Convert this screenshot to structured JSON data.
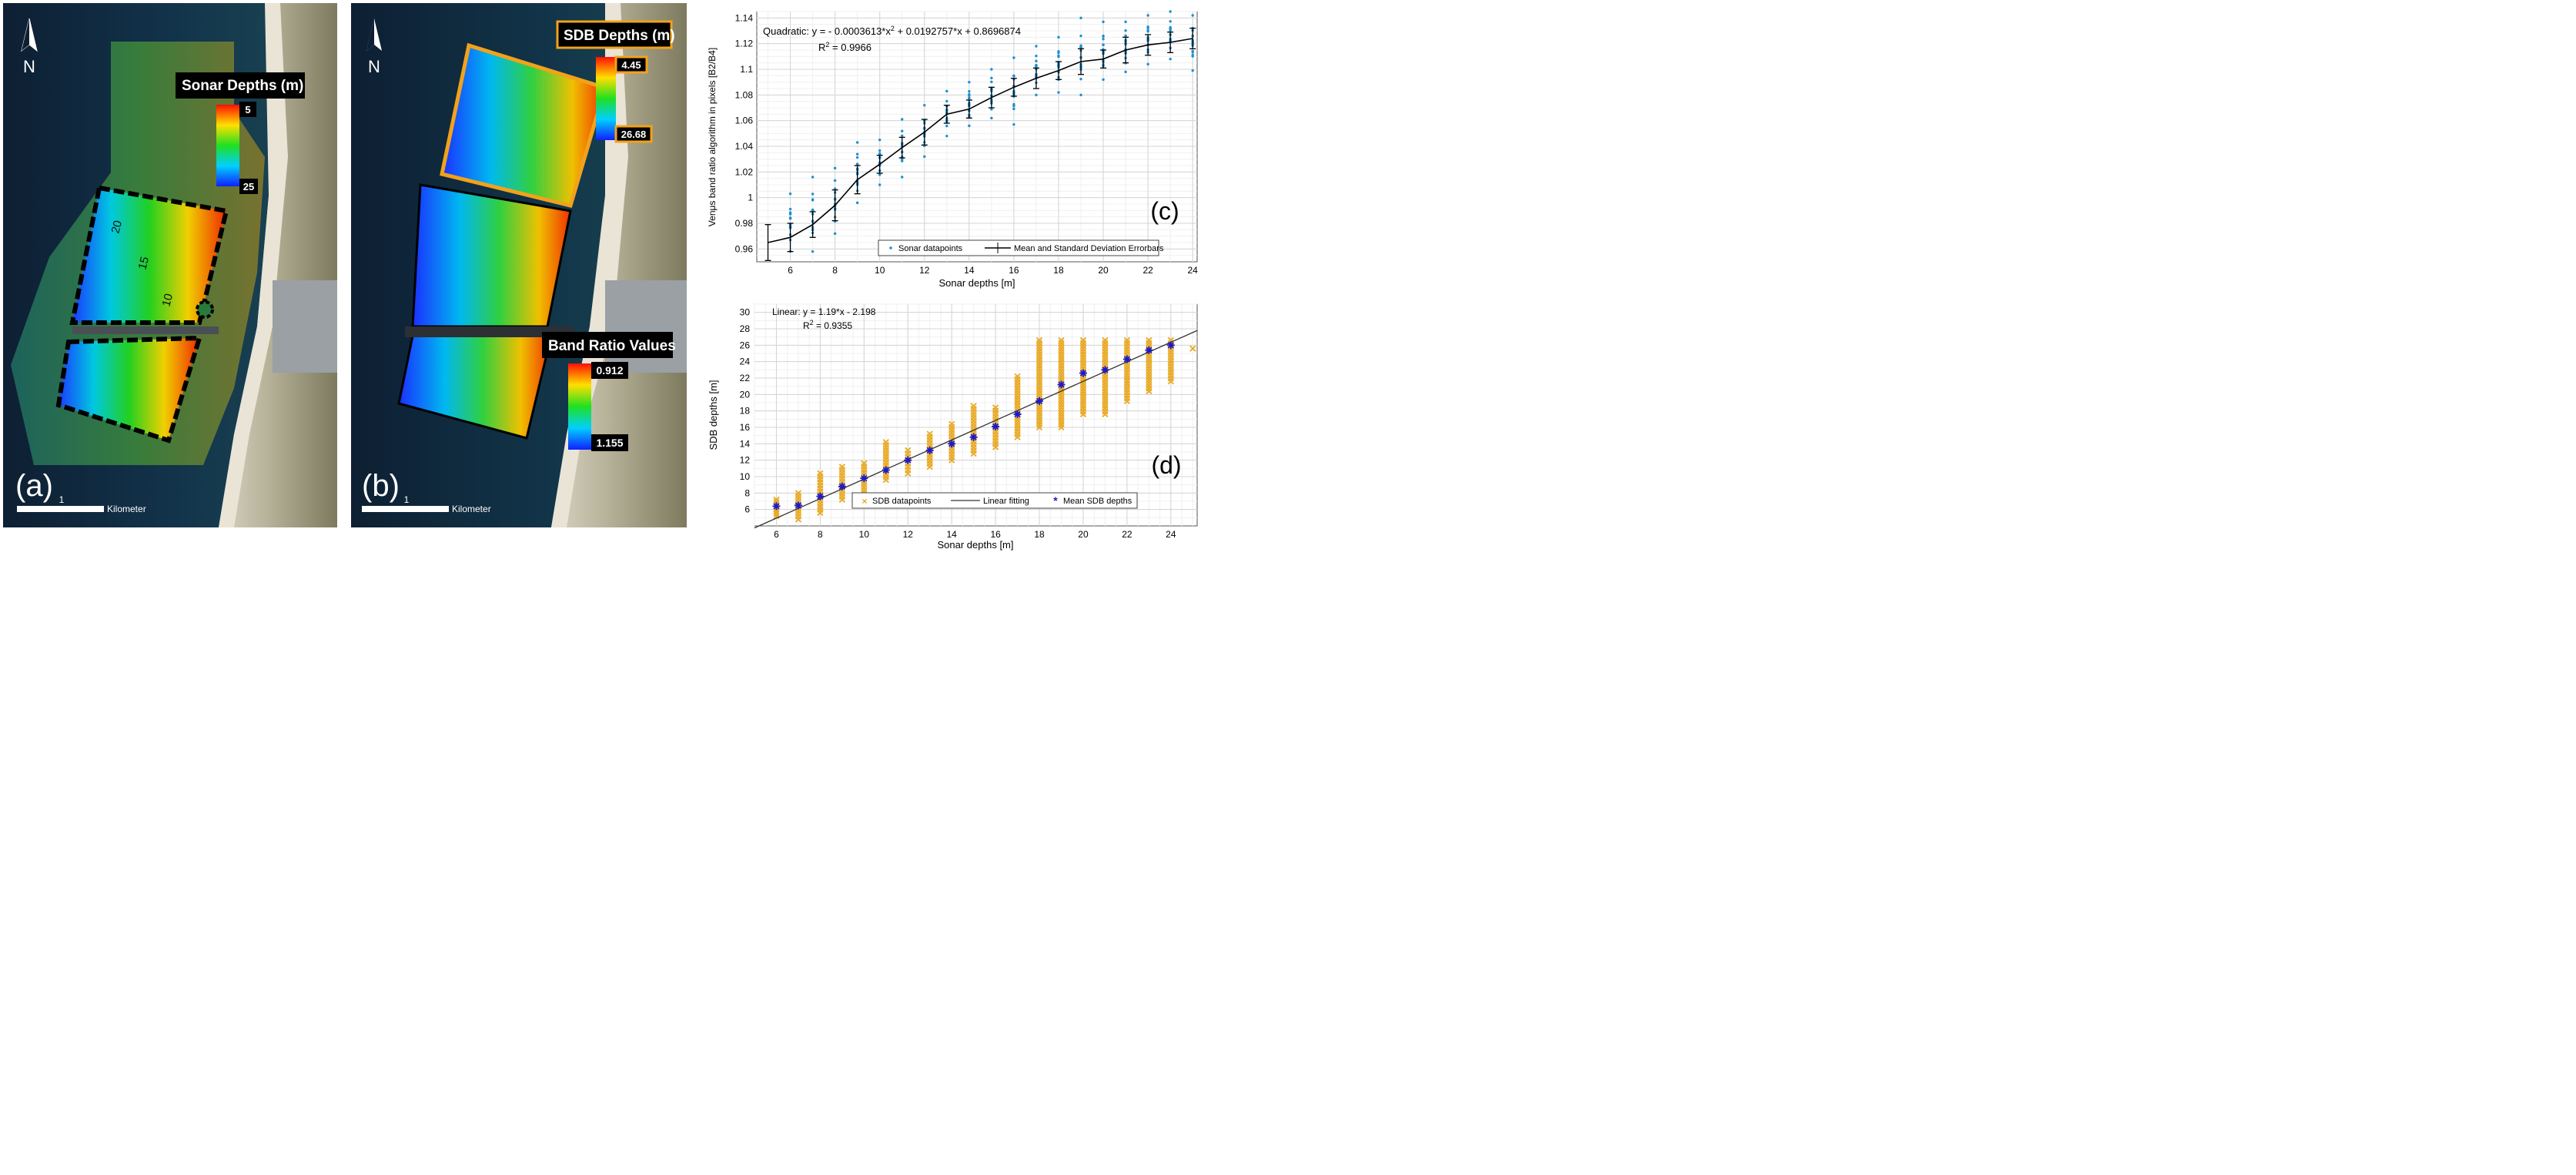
{
  "panels": {
    "a": {
      "letter": "(a)",
      "north": "N",
      "legend_title": "Sonar Depths  (m)",
      "legend_max": "5",
      "legend_min": "25",
      "contours": [
        "20",
        "15",
        "10"
      ],
      "scale_value": "1",
      "scale_unit": "Kilometer"
    },
    "b": {
      "letter": "(b)",
      "north": "N",
      "sdb_title": "SDB Depths (m)",
      "sdb_max": "4.45",
      "sdb_min": "26.68",
      "band_title": "Band Ratio Values",
      "band_max": "0.912",
      "band_min": "1.155",
      "scale_value": "1",
      "scale_unit": "Kilometer"
    }
  },
  "chart_data": [
    {
      "id": "c",
      "type": "scatter",
      "letter": "(c)",
      "xlabel": "Sonar depths [m]",
      "ylabel": "Venμs band ratio algorithm in pixels [B2/B4]",
      "xlim": [
        4.5,
        24.2
      ],
      "ylim": [
        0.95,
        1.145
      ],
      "xticks": [
        "6",
        "8",
        "10",
        "12",
        "14",
        "16",
        "18",
        "20",
        "22",
        "24"
      ],
      "yticks": [
        "0.96",
        "0.98",
        "1",
        "1.02",
        "1.04",
        "1.06",
        "1.08",
        "1.1",
        "1.12",
        "1.14"
      ],
      "annotation_eq": "Quadratic:  y = - 0.0003613*x",
      "annotation_eq_exp": "2",
      "annotation_eq_rest": " + 0.0192757*x + 0.8696874",
      "annotation_r2": "R",
      "annotation_r2_exp": "2",
      "annotation_r2_rest": " = 0.9966",
      "legend": [
        "Sonar datapoints",
        "Mean and Standard Deviation Errorbars"
      ],
      "colors": {
        "points": "#1f8fcf",
        "line": "#000000"
      },
      "series": [
        {
          "name": "Mean and Standard Deviation Errorbars",
          "x": [
            5,
            6,
            7,
            8,
            9,
            10,
            11,
            12,
            13,
            14,
            15,
            16,
            17,
            18,
            19,
            20,
            21,
            22,
            23,
            24
          ],
          "mean": [
            0.965,
            0.969,
            0.979,
            0.994,
            1.014,
            1.026,
            1.039,
            1.051,
            1.065,
            1.069,
            1.078,
            1.086,
            1.093,
            1.099,
            1.106,
            1.108,
            1.115,
            1.119,
            1.121,
            1.124
          ],
          "std": [
            0.014,
            0.011,
            0.01,
            0.012,
            0.011,
            0.007,
            0.008,
            0.01,
            0.007,
            0.007,
            0.008,
            0.007,
            0.008,
            0.007,
            0.01,
            0.007,
            0.01,
            0.008,
            0.008,
            0.008
          ]
        },
        {
          "name": "Sonar datapoints",
          "x": [
            6,
            7,
            8,
            9,
            10,
            11,
            12,
            13,
            14,
            15,
            16,
            17,
            18,
            19,
            20,
            21,
            22,
            23,
            24
          ],
          "ymin": [
            0.958,
            0.958,
            0.972,
            0.996,
            1.01,
            1.016,
            1.032,
            1.048,
            1.056,
            1.062,
            1.057,
            1.08,
            1.082,
            1.08,
            1.092,
            1.098,
            1.104,
            1.108,
            1.099
          ],
          "ymax": [
            1.003,
            1.016,
            1.023,
            1.043,
            1.045,
            1.061,
            1.072,
            1.083,
            1.09,
            1.1,
            1.109,
            1.118,
            1.125,
            1.14,
            1.137,
            1.137,
            1.142,
            1.145,
            1.142
          ]
        }
      ]
    },
    {
      "id": "d",
      "type": "scatter",
      "letter": "(d)",
      "xlabel": "Sonar depths [m]",
      "ylabel": "SDB depths [m]",
      "xlim": [
        5,
        25.2
      ],
      "ylim": [
        4,
        31
      ],
      "xticks": [
        "6",
        "8",
        "10",
        "12",
        "14",
        "16",
        "18",
        "20",
        "22",
        "24"
      ],
      "yticks": [
        "6",
        "8",
        "10",
        "12",
        "14",
        "16",
        "18",
        "20",
        "22",
        "24",
        "26",
        "28",
        "30"
      ],
      "annotation_eq": "Linear:  y = 1.19*x - 2.198",
      "annotation_r2": "R",
      "annotation_r2_exp": "2",
      "annotation_r2_rest": " = 0.9355",
      "legend": [
        "SDB datapoints",
        "Linear fitting",
        "Mean SDB depths"
      ],
      "colors": {
        "points": "#e8a820",
        "line": "#333333",
        "mean": "#1a1acc"
      },
      "fit": {
        "slope": 1.19,
        "intercept": -2.198
      },
      "series": [
        {
          "name": "Mean SDB depths",
          "x": [
            6,
            7,
            8,
            9,
            10,
            11,
            12,
            13,
            14,
            15,
            16,
            17,
            18,
            19,
            20,
            21,
            22,
            23,
            24
          ],
          "y": [
            6.4,
            6.5,
            7.6,
            8.8,
            9.8,
            10.8,
            12.0,
            13.2,
            14.0,
            14.8,
            16.1,
            17.6,
            19.2,
            21.2,
            22.6,
            23.0,
            24.3,
            25.4,
            26.0
          ]
        },
        {
          "name": "SDB datapoints",
          "x": [
            6,
            7,
            8,
            9,
            10,
            11,
            12,
            13,
            14,
            15,
            16,
            17,
            18,
            19,
            20,
            21,
            22,
            23,
            24,
            25
          ],
          "ymin": [
            5.2,
            4.8,
            5.6,
            7.2,
            8.0,
            9.6,
            10.4,
            11.2,
            12.0,
            12.8,
            13.6,
            14.8,
            16.0,
            16.0,
            17.6,
            17.6,
            19.2,
            20.4,
            21.6,
            25.6
          ],
          "ymax": [
            7.2,
            8.0,
            10.4,
            11.2,
            11.6,
            14.2,
            13.2,
            15.2,
            16.4,
            18.6,
            18.4,
            22.2,
            26.6,
            26.6,
            26.6,
            26.6,
            26.6,
            26.6,
            26.6,
            25.6
          ]
        }
      ]
    }
  ]
}
